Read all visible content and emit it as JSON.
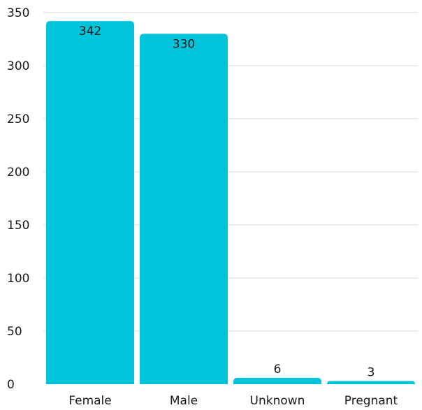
{
  "chart_data": {
    "type": "bar",
    "title": "",
    "xlabel": "",
    "ylabel": "",
    "categories": [
      "Female",
      "Male",
      "Unknown",
      "Pregnant"
    ],
    "values": [
      342,
      330,
      6,
      3
    ],
    "data_labels": [
      "342",
      "330",
      "6",
      "3"
    ],
    "ylim": [
      0,
      350
    ],
    "yticks": [
      0,
      50,
      100,
      150,
      200,
      250,
      300,
      350
    ],
    "ytick_labels": [
      "0",
      "50",
      "100",
      "150",
      "200",
      "250",
      "300",
      "350"
    ],
    "grid": true,
    "legend": "none",
    "bar_color": "#00C4D9",
    "grid_color": "#d9d9d9"
  }
}
